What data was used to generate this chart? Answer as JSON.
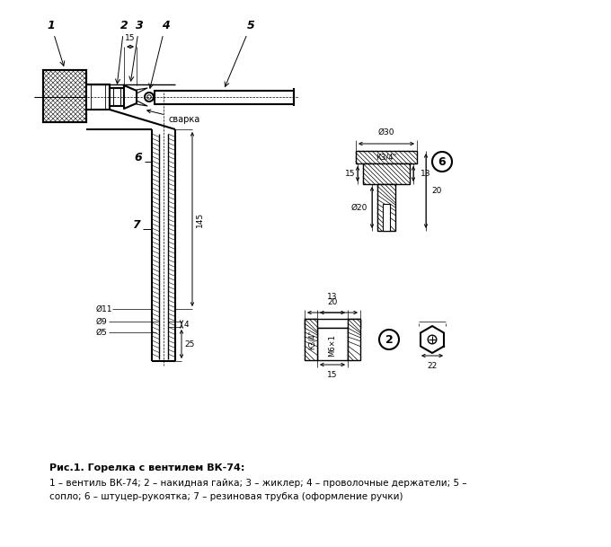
{
  "caption_line1": "Рис.1. Горелка с вентилем ВК-74:",
  "caption_line2": "1 – вентиль ВК-74; 2 – накидная гайка; 3 – жиклер; 4 – проволочные держатели; 5 –",
  "caption_line3": "сопло; 6 – штуцер-рукоятка; 7 – резиновая трубка (оформление ручки)",
  "bg_color": "#ffffff"
}
